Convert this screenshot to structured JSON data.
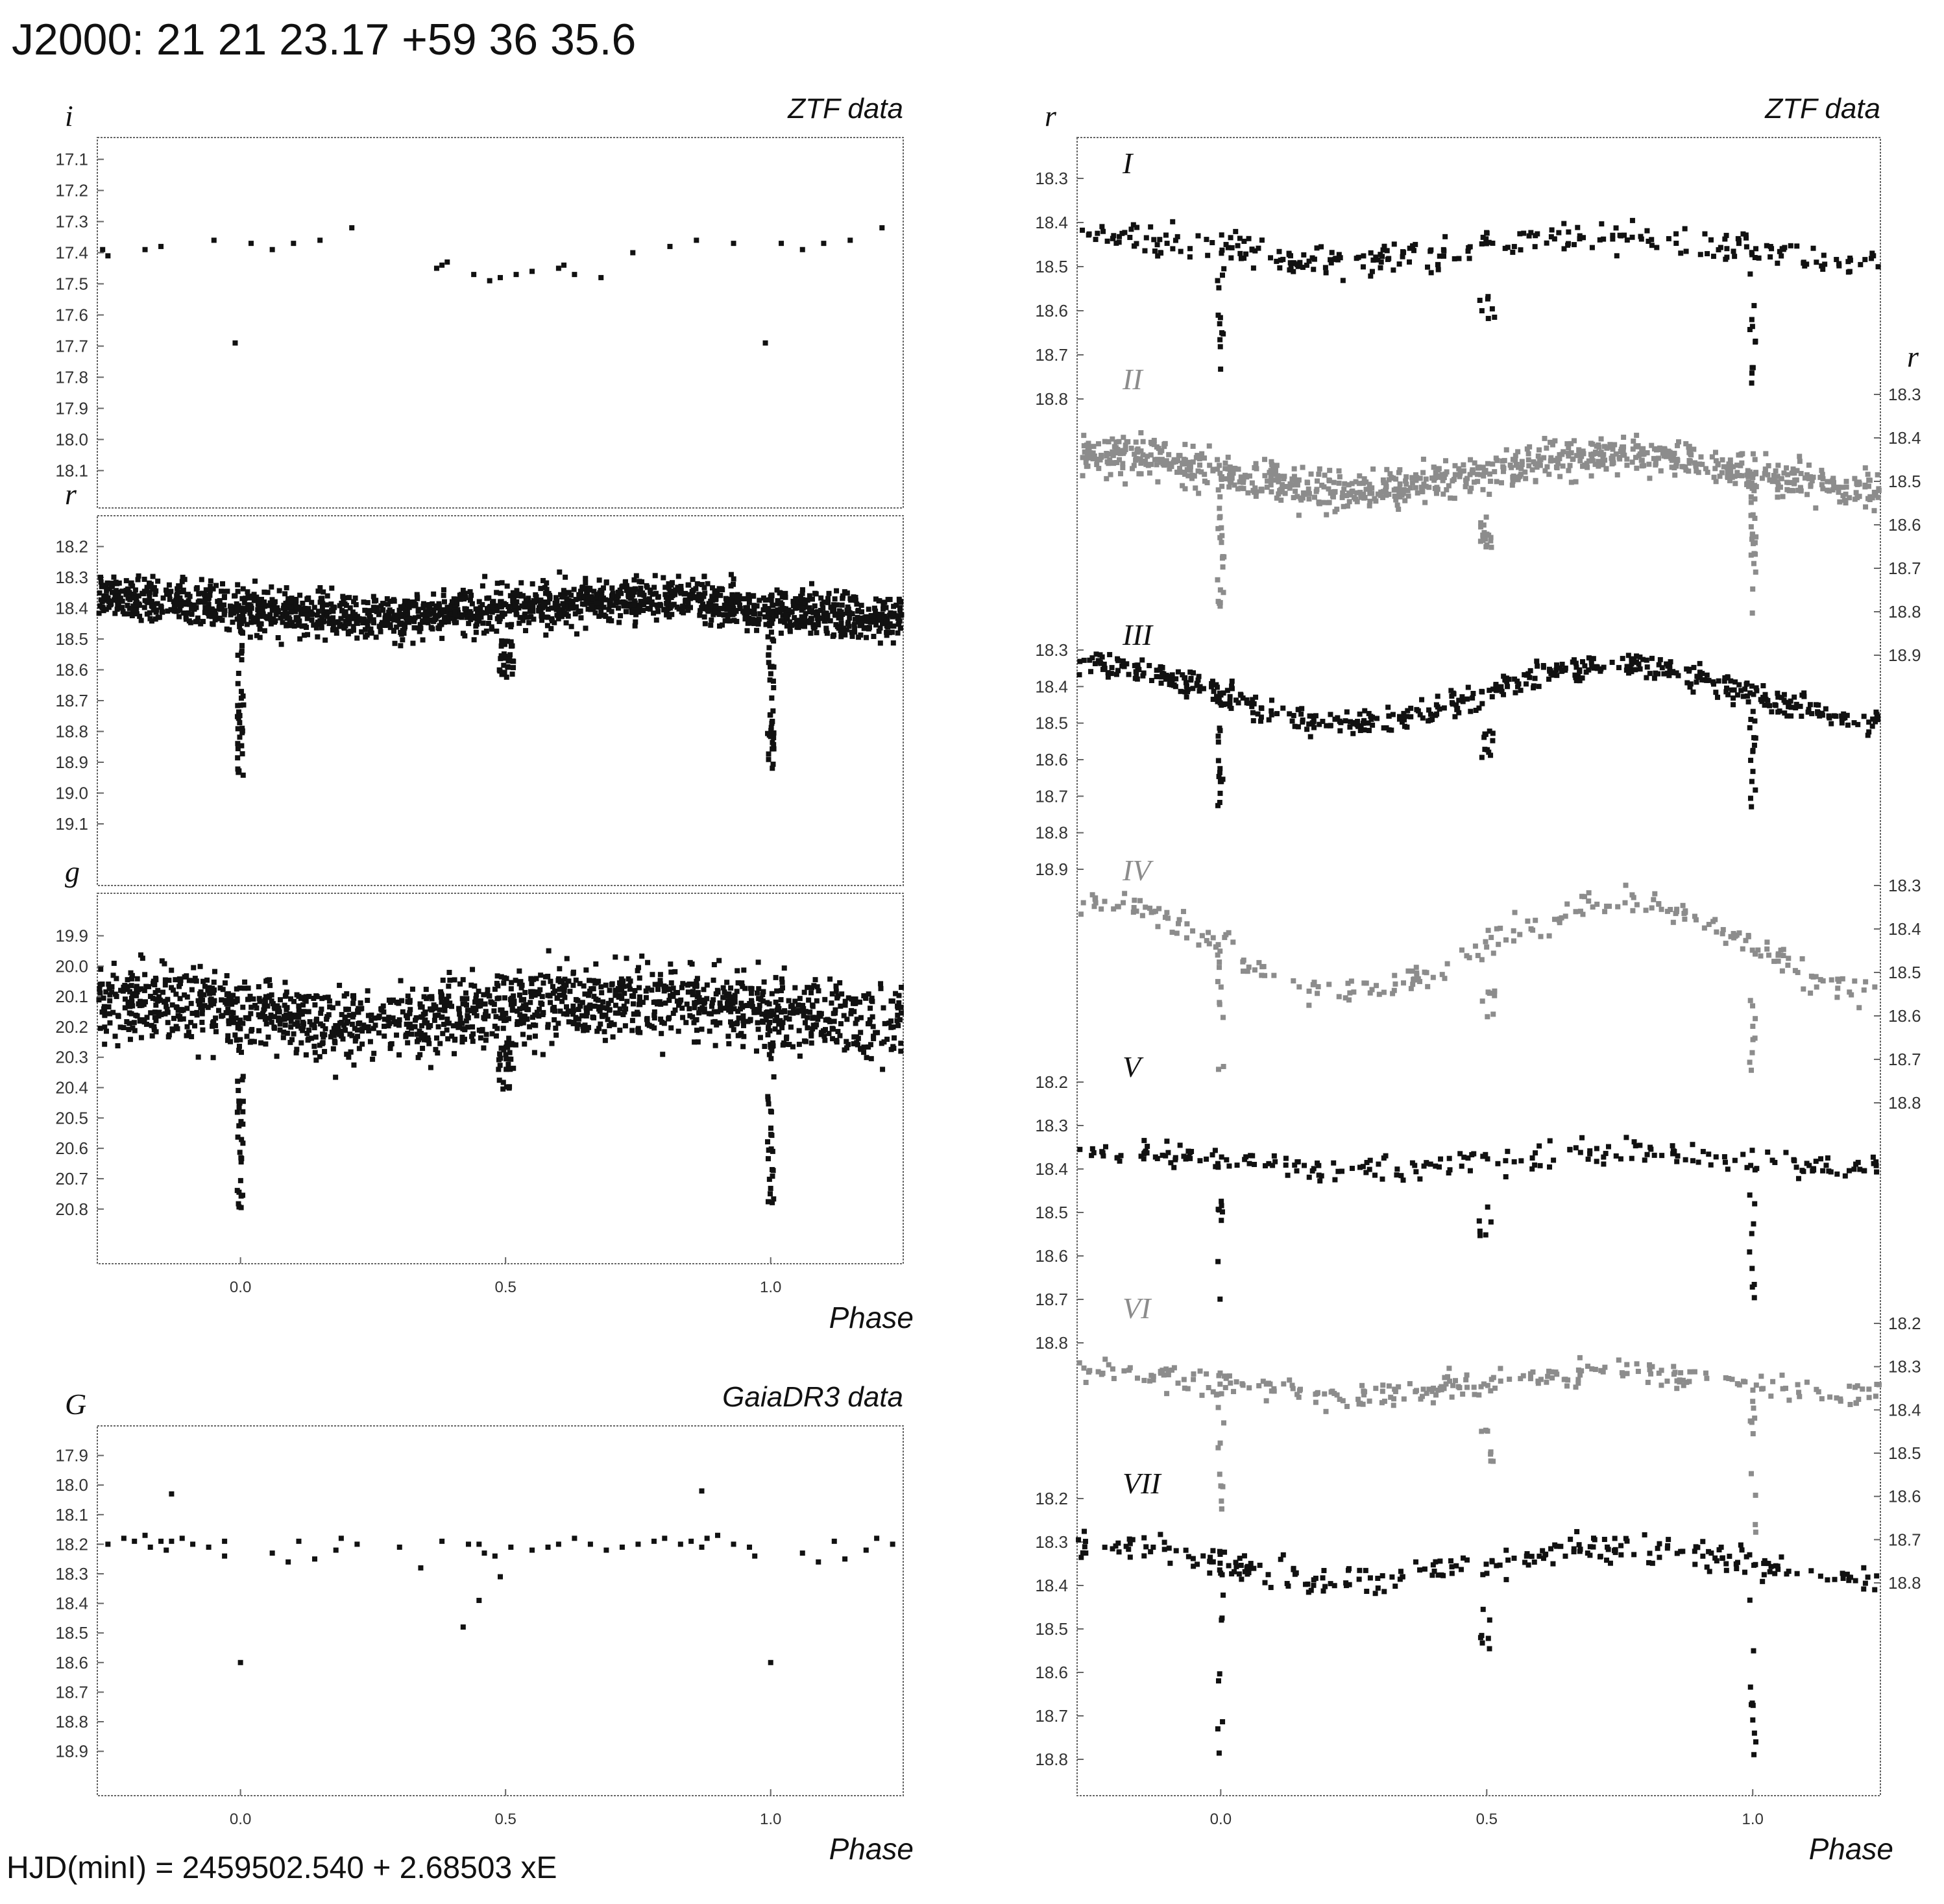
{
  "title": "J2000: 21 21 23.17 +59 36 35.6",
  "footer": "HJD(minI) = 2459502.540 + 2.68503 xE",
  "colors": {
    "ink": "#111111",
    "gray": "#8c8c8c",
    "frame": "#666666"
  },
  "chart_data": [
    {
      "type": "scatter",
      "id": "ztf-i",
      "band": "i",
      "source": "ZTF data",
      "xlim": [
        -0.27,
        1.25
      ],
      "ylim": [
        17.03,
        18.22
      ],
      "yticks": [
        "17.1",
        "17.2",
        "17.3",
        "17.4",
        "17.5",
        "17.6",
        "17.7",
        "17.8",
        "17.9",
        "18.0",
        "18.1"
      ],
      "series": [
        {
          "points": [
            [
              -0.26,
              17.39
            ],
            [
              -0.25,
              17.41
            ],
            [
              -0.18,
              17.39
            ],
            [
              -0.15,
              17.38
            ],
            [
              -0.05,
              17.36
            ],
            [
              -0.01,
              17.69
            ],
            [
              0.02,
              17.37
            ],
            [
              0.06,
              17.39
            ],
            [
              0.1,
              17.37
            ],
            [
              0.15,
              17.36
            ],
            [
              0.21,
              17.32
            ],
            [
              0.37,
              17.45
            ],
            [
              0.38,
              17.44
            ],
            [
              0.39,
              17.43
            ],
            [
              0.44,
              17.47
            ],
            [
              0.47,
              17.49
            ],
            [
              0.49,
              17.48
            ],
            [
              0.52,
              17.47
            ],
            [
              0.55,
              17.46
            ],
            [
              0.6,
              17.45
            ],
            [
              0.61,
              17.44
            ],
            [
              0.63,
              17.47
            ],
            [
              0.68,
              17.48
            ],
            [
              0.74,
              17.4
            ],
            [
              0.81,
              17.38
            ],
            [
              0.86,
              17.36
            ],
            [
              0.93,
              17.37
            ],
            [
              0.99,
              17.69
            ],
            [
              1.02,
              17.37
            ],
            [
              1.06,
              17.39
            ],
            [
              1.1,
              17.37
            ],
            [
              1.15,
              17.36
            ],
            [
              1.21,
              17.32
            ]
          ]
        }
      ]
    },
    {
      "type": "scatter",
      "id": "ztf-r",
      "band": "r",
      "xlim": [
        -0.27,
        1.25
      ],
      "ylim": [
        18.1,
        19.3
      ],
      "yticks": [
        "18.2",
        "18.3",
        "18.4",
        "18.5",
        "18.6",
        "18.7",
        "18.8",
        "18.9",
        "19.0",
        "19.1"
      ],
      "series": [
        {
          "model": "eclipse",
          "base": 18.4,
          "wave": 0.03,
          "scatter": 0.07,
          "count": 1800,
          "depth": 0.55,
          "seed": 11
        }
      ]
    },
    {
      "type": "scatter",
      "id": "ztf-g",
      "band": "g",
      "xlim": [
        -0.27,
        1.25
      ],
      "ylim": [
        19.76,
        20.98
      ],
      "yticks": [
        "19.9",
        "20.0",
        "20.1",
        "20.2",
        "20.3",
        "20.4",
        "20.5",
        "20.6",
        "20.7",
        "20.8"
      ],
      "series": [
        {
          "model": "eclipse",
          "base": 20.15,
          "wave": 0.04,
          "scatter": 0.12,
          "count": 1500,
          "depth": 0.65,
          "seed": 23
        }
      ]
    },
    {
      "type": "scatter",
      "id": "gaia-g",
      "band": "G",
      "source": "GaiaDR3 data",
      "xlim": [
        -0.27,
        1.25
      ],
      "ylim": [
        17.8,
        19.05
      ],
      "yticks": [
        "17.9",
        "18.0",
        "18.1",
        "18.2",
        "18.3",
        "18.4",
        "18.5",
        "18.6",
        "18.7",
        "18.8",
        "18.9"
      ],
      "series": [
        {
          "points": [
            [
              -0.25,
              18.2
            ],
            [
              -0.22,
              18.18
            ],
            [
              -0.2,
              18.19
            ],
            [
              -0.18,
              18.17
            ],
            [
              -0.17,
              18.21
            ],
            [
              -0.15,
              18.19
            ],
            [
              -0.14,
              18.22
            ],
            [
              -0.13,
              18.19
            ],
            [
              -0.11,
              18.18
            ],
            [
              -0.09,
              18.2
            ],
            [
              -0.06,
              18.21
            ],
            [
              -0.03,
              18.19
            ],
            [
              -0.03,
              18.24
            ],
            [
              -0.13,
              18.03
            ],
            [
              0.0,
              18.6
            ],
            [
              0.06,
              18.23
            ],
            [
              0.09,
              18.26
            ],
            [
              0.11,
              18.19
            ],
            [
              0.14,
              18.25
            ],
            [
              0.18,
              18.22
            ],
            [
              0.19,
              18.18
            ],
            [
              0.22,
              18.2
            ],
            [
              0.3,
              18.21
            ],
            [
              0.34,
              18.28
            ],
            [
              0.38,
              18.19
            ],
            [
              0.43,
              18.2
            ],
            [
              0.45,
              18.2
            ],
            [
              0.46,
              18.23
            ],
            [
              0.48,
              18.24
            ],
            [
              0.49,
              18.31
            ],
            [
              0.51,
              18.21
            ],
            [
              0.42,
              18.48
            ],
            [
              0.45,
              18.39
            ],
            [
              0.55,
              18.22
            ],
            [
              0.58,
              18.21
            ],
            [
              0.6,
              18.2
            ],
            [
              0.63,
              18.18
            ],
            [
              0.66,
              18.2
            ],
            [
              0.69,
              18.22
            ],
            [
              0.72,
              18.21
            ],
            [
              0.75,
              18.2
            ],
            [
              0.78,
              18.19
            ],
            [
              0.8,
              18.18
            ],
            [
              0.83,
              18.2
            ],
            [
              0.85,
              18.19
            ],
            [
              0.87,
              18.21
            ],
            [
              0.88,
              18.18
            ],
            [
              0.9,
              18.17
            ],
            [
              0.93,
              18.2
            ],
            [
              0.96,
              18.21
            ],
            [
              0.97,
              18.24
            ],
            [
              0.87,
              18.02
            ],
            [
              1.0,
              18.6
            ],
            [
              1.06,
              18.23
            ],
            [
              1.09,
              18.26
            ],
            [
              1.12,
              18.19
            ],
            [
              1.14,
              18.25
            ],
            [
              1.18,
              18.22
            ],
            [
              1.2,
              18.18
            ],
            [
              1.23,
              18.2
            ]
          ]
        }
      ]
    },
    {
      "type": "scatter",
      "id": "ztf-r-seasons",
      "band": "r",
      "source": "ZTF data",
      "xlim": [
        -0.27,
        1.24
      ],
      "series": [
        {
          "name": "I",
          "color": "ink",
          "axis": "left",
          "ylim": [
            18.25,
            18.8
          ],
          "yticks": [
            "18.3",
            "18.4",
            "18.5",
            "18.6",
            "18.7",
            "18.8"
          ],
          "base": 18.46,
          "wave": 0.03,
          "scatter": 0.035,
          "count": 280,
          "depth": 0.32,
          "seed": 101
        },
        {
          "name": "II",
          "color": "gray",
          "axis": "right",
          "ylim": [
            18.25,
            18.95
          ],
          "yticks": [
            "18.3",
            "18.4",
            "18.5",
            "18.6",
            "18.7",
            "18.8",
            "18.9"
          ],
          "base": 18.48,
          "wave": 0.04,
          "scatter": 0.045,
          "count": 900,
          "depth": 0.33,
          "seed": 202
        },
        {
          "name": "III",
          "color": "ink",
          "axis": "left",
          "ylim": [
            18.25,
            18.95
          ],
          "yticks": [
            "18.3",
            "18.4",
            "18.5",
            "18.6",
            "18.7",
            "18.8",
            "18.9"
          ],
          "base": 18.42,
          "wave": 0.08,
          "scatter": 0.035,
          "count": 520,
          "depth": 0.33,
          "seed": 303
        },
        {
          "name": "IV",
          "color": "gray",
          "axis": "right",
          "ylim": [
            18.25,
            18.75
          ],
          "yticks": [
            "18.3",
            "18.4",
            "18.5",
            "18.6",
            "18.7",
            "18.8"
          ],
          "base": 18.44,
          "wave": 0.1,
          "scatter": 0.035,
          "count": 240,
          "depth": 0.3,
          "seed": 404
        },
        {
          "name": "V",
          "color": "ink",
          "axis": "left",
          "ylim": [
            18.15,
            18.85
          ],
          "yticks": [
            "18.2",
            "18.3",
            "18.4",
            "18.5",
            "18.6",
            "18.7",
            "18.8"
          ],
          "base": 18.38,
          "wave": 0.02,
          "scatter": 0.03,
          "count": 220,
          "depth": 0.33,
          "seed": 505
        },
        {
          "name": "VI",
          "color": "gray",
          "axis": "right",
          "ylim": [
            18.15,
            18.85
          ],
          "yticks": [
            "18.2",
            "18.3",
            "18.4",
            "18.5",
            "18.6",
            "18.7",
            "18.8"
          ],
          "base": 18.34,
          "wave": 0.025,
          "scatter": 0.03,
          "count": 260,
          "depth": 0.36,
          "seed": 606
        },
        {
          "name": "VII",
          "color": "ink",
          "axis": "left",
          "ylim": [
            18.15,
            18.85
          ],
          "yticks": [
            "18.2",
            "18.3",
            "18.4",
            "18.5",
            "18.6",
            "18.7",
            "18.8"
          ],
          "base": 18.35,
          "wave": 0.04,
          "scatter": 0.035,
          "count": 260,
          "depth": 0.45,
          "seed": 707
        }
      ]
    }
  ],
  "xticks": [
    "0.0",
    "0.5",
    "1.0"
  ],
  "xlabel": "Phase"
}
